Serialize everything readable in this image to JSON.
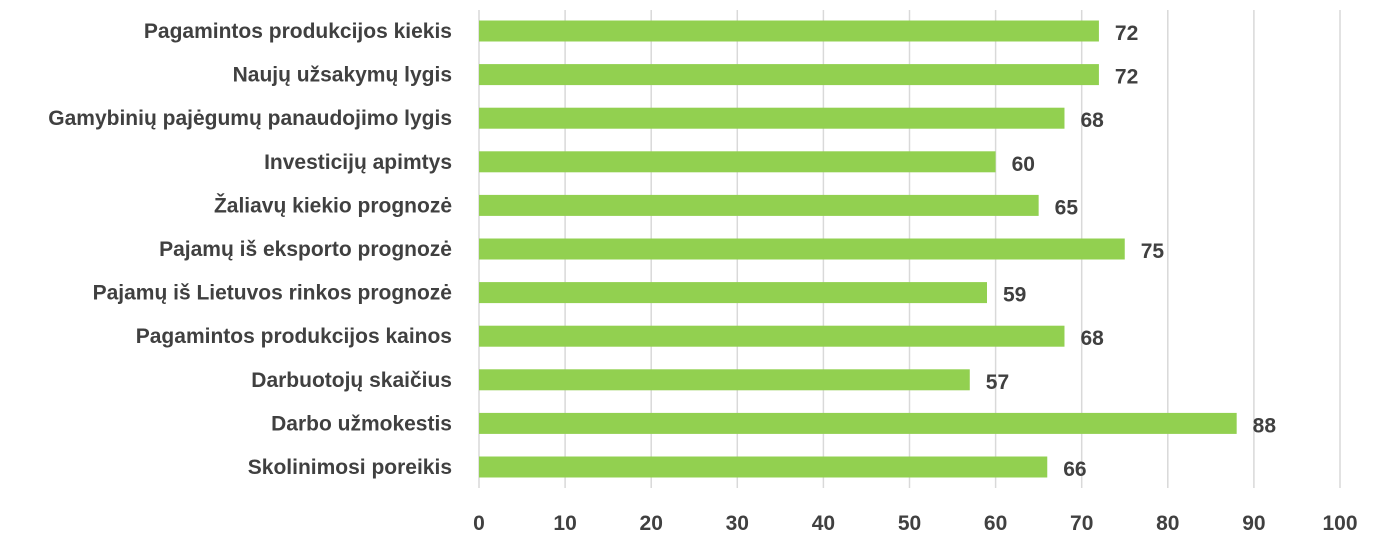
{
  "chart_data": {
    "type": "bar",
    "orientation": "horizontal",
    "categories": [
      "Pagamintos produkcijos kiekis",
      "Naujų užsakymų lygis",
      "Gamybinių pajėgumų panaudojimo lygis",
      "Investicijų apimtys",
      "Žaliavų kiekio prognozė",
      "Pajamų iš eksporto prognozė",
      "Pajamų iš Lietuvos rinkos prognozė",
      "Pagamintos produkcijos kainos",
      "Darbuotojų skaičius",
      "Darbo užmokestis",
      "Skolinimosi poreikis"
    ],
    "values": [
      72,
      72,
      68,
      60,
      65,
      75,
      59,
      68,
      57,
      88,
      66
    ],
    "xlim": [
      0,
      100
    ],
    "xticks": [
      0,
      10,
      20,
      30,
      40,
      50,
      60,
      70,
      80,
      90,
      100
    ],
    "grid": true,
    "bar_color": "#92d050",
    "text_color": "#404040",
    "grid_color": "#d9d9d9"
  }
}
